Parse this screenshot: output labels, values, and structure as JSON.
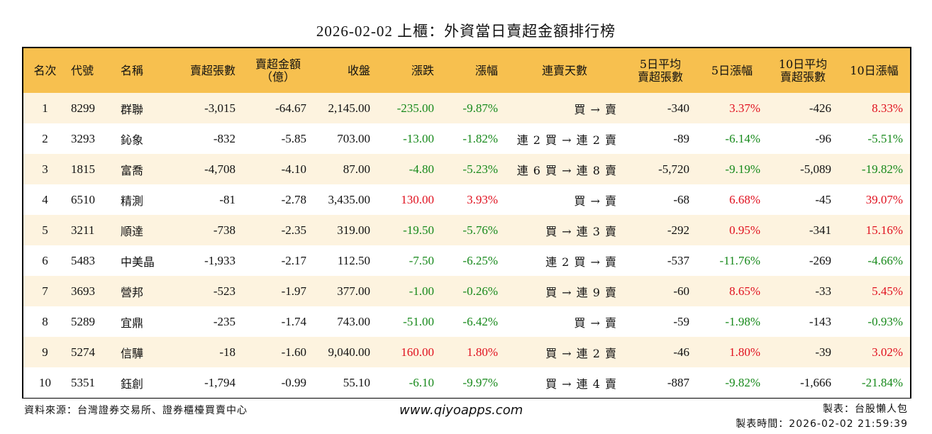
{
  "title": "2026-02-02 上櫃：外資當日賣超金額排行榜",
  "colors": {
    "header_bg": "#f7c04f",
    "row_odd_bg": "#fdf3df",
    "row_even_bg": "#ffffff",
    "up": "#e0101e",
    "down": "#17891b",
    "border": "#000000"
  },
  "table": {
    "headers": {
      "rank": "名次",
      "code": "代號",
      "name": "名稱",
      "sell_shares": "賣超張數",
      "sell_amount_line1": "賣超金額",
      "sell_amount_line2": "（億）",
      "close": "收盤",
      "change": "漲跌",
      "pct": "漲幅",
      "streak": "連賣天數",
      "avg5_line1": "5日平均",
      "avg5_line2": "賣超張數",
      "pct5": "5日漲幅",
      "avg10_line1": "10日平均",
      "avg10_line2": "賣超張數",
      "pct10": "10日漲幅"
    },
    "rows": [
      {
        "rank": "1",
        "code": "8299",
        "name": "群聯",
        "sell_shares": "-3,015",
        "sell_amount": "-64.67",
        "close": "2,145.00",
        "change": "-235.00",
        "change_dir": "neg",
        "pct": "-9.87%",
        "pct_dir": "neg",
        "streak": "買 → 賣",
        "avg5": "-340",
        "pct5": "3.37%",
        "pct5_dir": "pos",
        "avg10": "-426",
        "pct10": "8.33%",
        "pct10_dir": "pos"
      },
      {
        "rank": "2",
        "code": "3293",
        "name": "鈊象",
        "sell_shares": "-832",
        "sell_amount": "-5.85",
        "close": "703.00",
        "change": "-13.00",
        "change_dir": "neg",
        "pct": "-1.82%",
        "pct_dir": "neg",
        "streak": "連 2 買 → 連 2 賣",
        "avg5": "-89",
        "pct5": "-6.14%",
        "pct5_dir": "neg",
        "avg10": "-96",
        "pct10": "-5.51%",
        "pct10_dir": "neg"
      },
      {
        "rank": "3",
        "code": "1815",
        "name": "富喬",
        "sell_shares": "-4,708",
        "sell_amount": "-4.10",
        "close": "87.00",
        "change": "-4.80",
        "change_dir": "neg",
        "pct": "-5.23%",
        "pct_dir": "neg",
        "streak": "連 6 買 → 連 8 賣",
        "avg5": "-5,720",
        "pct5": "-9.19%",
        "pct5_dir": "neg",
        "avg10": "-5,089",
        "pct10": "-19.82%",
        "pct10_dir": "neg"
      },
      {
        "rank": "4",
        "code": "6510",
        "name": "精測",
        "sell_shares": "-81",
        "sell_amount": "-2.78",
        "close": "3,435.00",
        "change": "130.00",
        "change_dir": "pos",
        "pct": "3.93%",
        "pct_dir": "pos",
        "streak": "買 → 賣",
        "avg5": "-68",
        "pct5": "6.68%",
        "pct5_dir": "pos",
        "avg10": "-45",
        "pct10": "39.07%",
        "pct10_dir": "pos"
      },
      {
        "rank": "5",
        "code": "3211",
        "name": "順達",
        "sell_shares": "-738",
        "sell_amount": "-2.35",
        "close": "319.00",
        "change": "-19.50",
        "change_dir": "neg",
        "pct": "-5.76%",
        "pct_dir": "neg",
        "streak": "買 → 連 3 賣",
        "avg5": "-292",
        "pct5": "0.95%",
        "pct5_dir": "pos",
        "avg10": "-341",
        "pct10": "15.16%",
        "pct10_dir": "pos"
      },
      {
        "rank": "6",
        "code": "5483",
        "name": "中美晶",
        "sell_shares": "-1,933",
        "sell_amount": "-2.17",
        "close": "112.50",
        "change": "-7.50",
        "change_dir": "neg",
        "pct": "-6.25%",
        "pct_dir": "neg",
        "streak": "連 2 買 → 賣",
        "avg5": "-537",
        "pct5": "-11.76%",
        "pct5_dir": "neg",
        "avg10": "-269",
        "pct10": "-4.66%",
        "pct10_dir": "neg"
      },
      {
        "rank": "7",
        "code": "3693",
        "name": "營邦",
        "sell_shares": "-523",
        "sell_amount": "-1.97",
        "close": "377.00",
        "change": "-1.00",
        "change_dir": "neg",
        "pct": "-0.26%",
        "pct_dir": "neg",
        "streak": "買 → 連 9 賣",
        "avg5": "-60",
        "pct5": "8.65%",
        "pct5_dir": "pos",
        "avg10": "-33",
        "pct10": "5.45%",
        "pct10_dir": "pos"
      },
      {
        "rank": "8",
        "code": "5289",
        "name": "宜鼎",
        "sell_shares": "-235",
        "sell_amount": "-1.74",
        "close": "743.00",
        "change": "-51.00",
        "change_dir": "neg",
        "pct": "-6.42%",
        "pct_dir": "neg",
        "streak": "買 → 賣",
        "avg5": "-59",
        "pct5": "-1.98%",
        "pct5_dir": "neg",
        "avg10": "-143",
        "pct10": "-0.93%",
        "pct10_dir": "neg"
      },
      {
        "rank": "9",
        "code": "5274",
        "name": "信驊",
        "sell_shares": "-18",
        "sell_amount": "-1.60",
        "close": "9,040.00",
        "change": "160.00",
        "change_dir": "pos",
        "pct": "1.80%",
        "pct_dir": "pos",
        "streak": "買 → 連 2 賣",
        "avg5": "-46",
        "pct5": "1.80%",
        "pct5_dir": "pos",
        "avg10": "-39",
        "pct10": "3.02%",
        "pct10_dir": "pos"
      },
      {
        "rank": "10",
        "code": "5351",
        "name": "鈺創",
        "sell_shares": "-1,794",
        "sell_amount": "-0.99",
        "close": "55.10",
        "change": "-6.10",
        "change_dir": "neg",
        "pct": "-9.97%",
        "pct_dir": "neg",
        "streak": "買 → 連 4 賣",
        "avg5": "-887",
        "pct5": "-9.82%",
        "pct5_dir": "neg",
        "avg10": "-1,666",
        "pct10": "-21.84%",
        "pct10_dir": "neg"
      }
    ]
  },
  "footer": {
    "source": "資料來源：台灣證券交易所、證券櫃檯買賣中心",
    "website": "www.qiyoapps.com",
    "author": "製表：台股懶人包",
    "generated_at": "製表時間：2026-02-02 21:59:39"
  }
}
